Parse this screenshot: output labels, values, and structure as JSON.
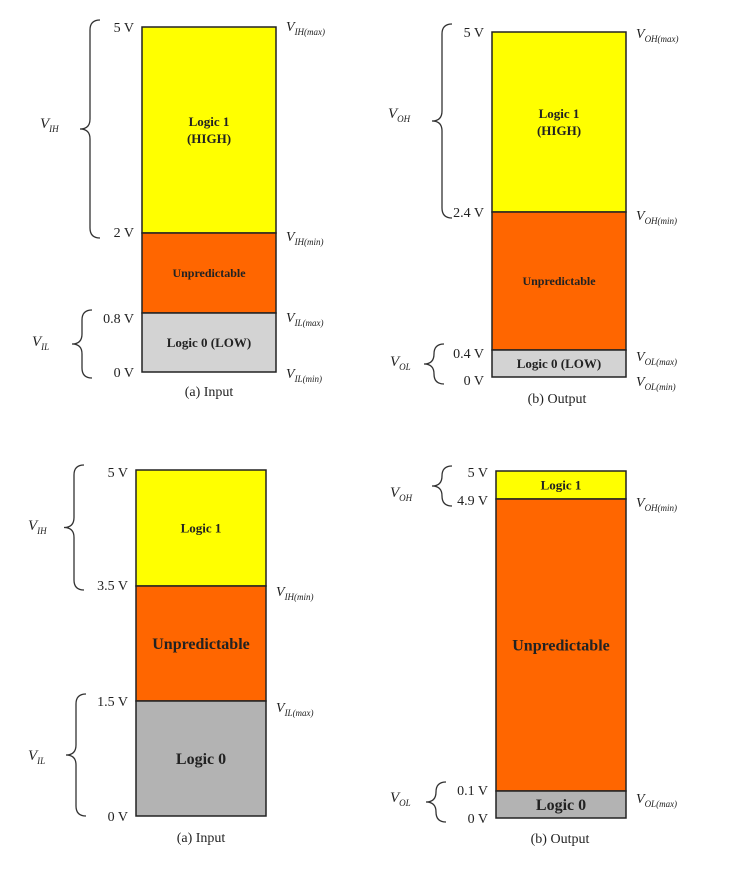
{
  "panels": [
    {
      "caption": "(a) Input",
      "regions": [
        {
          "key": "high",
          "lines": [
            "Logic 1",
            "(HIGH)"
          ],
          "color": "#ffff00"
        },
        {
          "key": "undef",
          "lines": [
            "Unpredictable"
          ],
          "color": "#ff6600"
        },
        {
          "key": "low",
          "lines": [
            "Logic 0 (LOW)"
          ],
          "color": "#d3d3d3"
        }
      ],
      "voltages": [
        "5 V",
        "2 V",
        "0.8 V",
        "0 V"
      ],
      "right_labels": [
        {
          "base": "V",
          "sub": "IH(max)"
        },
        {
          "base": "V",
          "sub": "IH(min)"
        },
        {
          "base": "V",
          "sub": "IL(max)"
        },
        {
          "base": "V",
          "sub": "IL(min)"
        }
      ],
      "brace_labels": [
        {
          "base": "V",
          "sub": "IH"
        },
        {
          "base": "V",
          "sub": "IL"
        }
      ]
    },
    {
      "caption": "(b) Output",
      "regions": [
        {
          "key": "high",
          "lines": [
            "Logic 1",
            "(HIGH)"
          ],
          "color": "#ffff00"
        },
        {
          "key": "undef",
          "lines": [
            "Unpredictable"
          ],
          "color": "#ff6600"
        },
        {
          "key": "low",
          "lines": [
            "Logic 0 (LOW)"
          ],
          "color": "#d3d3d3"
        }
      ],
      "voltages": [
        "5 V",
        "2.4 V",
        "0.4 V",
        "0 V"
      ],
      "right_labels": [
        {
          "base": "V",
          "sub": "OH(max)"
        },
        {
          "base": "V",
          "sub": "OH(min)"
        },
        {
          "base": "V",
          "sub": "OL(max)"
        },
        {
          "base": "V",
          "sub": "OL(min)"
        }
      ],
      "brace_labels": [
        {
          "base": "V",
          "sub": "OH"
        },
        {
          "base": "V",
          "sub": "OL"
        }
      ]
    },
    {
      "caption": "(a) Input",
      "regions": [
        {
          "key": "high",
          "lines": [
            "Logic 1"
          ],
          "color": "#ffff00"
        },
        {
          "key": "undef",
          "lines": [
            "Unpredictable"
          ],
          "color": "#ff6600"
        },
        {
          "key": "low",
          "lines": [
            "Logic 0"
          ],
          "color": "#b3b3b3"
        }
      ],
      "voltages": [
        "5 V",
        "3.5 V",
        "1.5 V",
        "0 V"
      ],
      "right_labels": [
        {
          "base": "V",
          "sub": "IH(min)"
        },
        {
          "base": "V",
          "sub": "IL(max)"
        }
      ],
      "brace_labels": [
        {
          "base": "V",
          "sub": "IH"
        },
        {
          "base": "V",
          "sub": "IL"
        }
      ]
    },
    {
      "caption": "(b) Output",
      "regions": [
        {
          "key": "high",
          "lines": [
            "Logic 1"
          ],
          "color": "#ffff00"
        },
        {
          "key": "undef",
          "lines": [
            "Unpredictable"
          ],
          "color": "#ff6600"
        },
        {
          "key": "low",
          "lines": [
            "Logic 0"
          ],
          "color": "#b3b3b3"
        }
      ],
      "voltages": [
        "5 V",
        "4.9 V",
        "0.1 V",
        "0 V"
      ],
      "right_labels": [
        {
          "base": "V",
          "sub": "OH(min)"
        },
        {
          "base": "V",
          "sub": "OL(max)"
        }
      ],
      "brace_labels": [
        {
          "base": "V",
          "sub": "OH"
        },
        {
          "base": "V",
          "sub": "OL"
        }
      ]
    }
  ]
}
